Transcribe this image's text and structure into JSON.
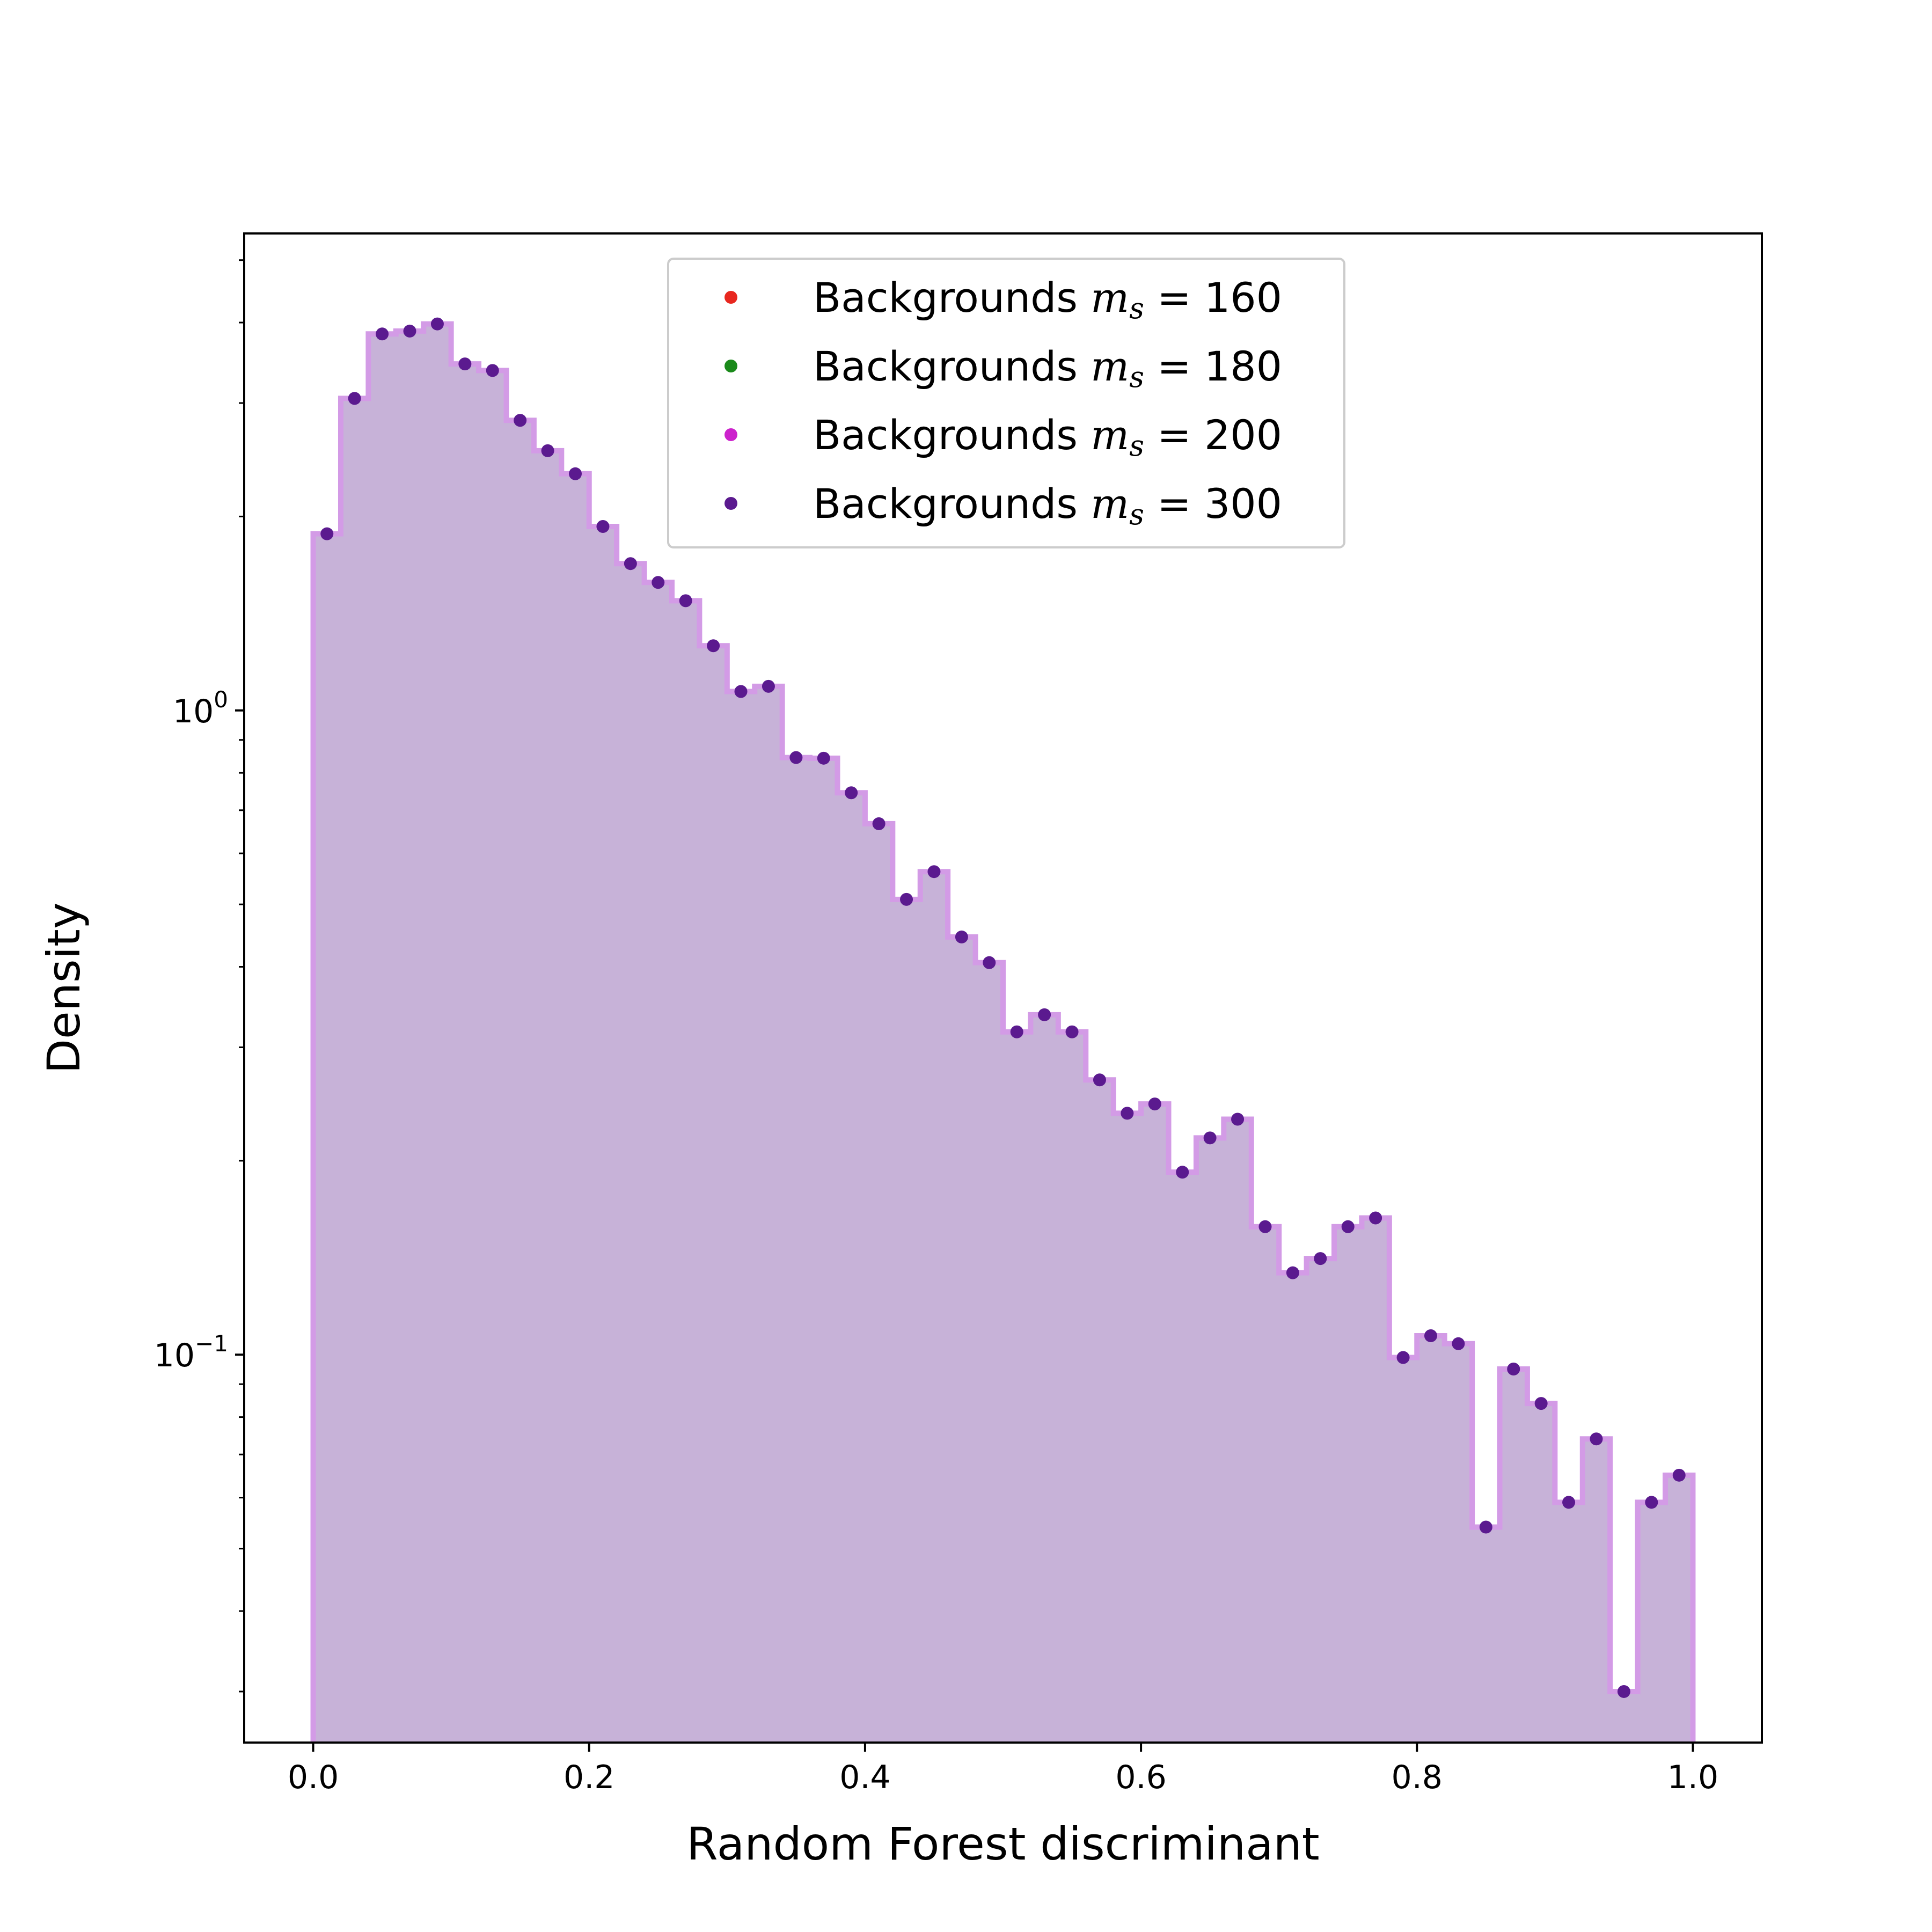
{
  "chart_data": {
    "type": "histogram",
    "xlabel": "Random Forest discriminant",
    "ylabel": "Density",
    "xlim": [
      -0.05,
      1.05
    ],
    "ylim": [
      0.025,
      5.5
    ],
    "y_scale": "log",
    "x_ticks": [
      0.0,
      0.2,
      0.4,
      0.6,
      0.8,
      1.0
    ],
    "x_tick_labels": [
      "0.0",
      "0.2",
      "0.4",
      "0.6",
      "0.8",
      "1.0"
    ],
    "y_ticks": [
      {
        "value": 1.0,
        "base": "10",
        "exponent": "0"
      },
      {
        "value": 0.1,
        "base": "10",
        "exponent": "−1"
      }
    ],
    "bin_edges": [
      0.0,
      0.02,
      0.04,
      0.06,
      0.08,
      0.1,
      0.12,
      0.14,
      0.16,
      0.18,
      0.2,
      0.22,
      0.24,
      0.26,
      0.28,
      0.3,
      0.32,
      0.34,
      0.36,
      0.38,
      0.4,
      0.42,
      0.44,
      0.46,
      0.48,
      0.5,
      0.52,
      0.54,
      0.56,
      0.58,
      0.6,
      0.62,
      0.64,
      0.66,
      0.68,
      0.7,
      0.72,
      0.74,
      0.76,
      0.78,
      0.8,
      0.82,
      0.84,
      0.86,
      0.88,
      0.9,
      0.92,
      0.94,
      0.96,
      0.98,
      1.0
    ],
    "series": [
      {
        "name": "300",
        "color": "#5b1a8f",
        "fill": "#c7b2d8",
        "step_color": "#d39be6",
        "values": [
          1.88,
          3.05,
          3.84,
          3.88,
          3.98,
          3.45,
          3.37,
          2.82,
          2.53,
          2.33,
          1.93,
          1.69,
          1.58,
          1.48,
          1.26,
          1.07,
          1.09,
          0.845,
          0.843,
          0.745,
          0.667,
          0.509,
          0.562,
          0.445,
          0.406,
          0.317,
          0.337,
          0.317,
          0.267,
          0.237,
          0.245,
          0.192,
          0.217,
          0.232,
          0.158,
          0.134,
          0.141,
          0.158,
          0.163,
          0.099,
          0.107,
          0.104,
          0.054,
          0.095,
          0.084,
          0.059,
          0.074,
          0.03,
          0.059,
          0.065
        ]
      }
    ],
    "legend": {
      "placement": "top-center",
      "entries": [
        {
          "prefix": "Backgrounds ",
          "math_var": "m",
          "math_sub": "s",
          "value": "160",
          "color": "#e8271f"
        },
        {
          "prefix": "Backgrounds ",
          "math_var": "m",
          "math_sub": "s",
          "value": "180",
          "color": "#1a8a1a"
        },
        {
          "prefix": "Backgrounds ",
          "math_var": "m",
          "math_sub": "s",
          "value": "200",
          "color": "#cc22cc"
        },
        {
          "prefix": "Backgrounds ",
          "math_var": "m",
          "math_sub": "s",
          "value": "300",
          "color": "#5b1a8f"
        }
      ]
    }
  }
}
